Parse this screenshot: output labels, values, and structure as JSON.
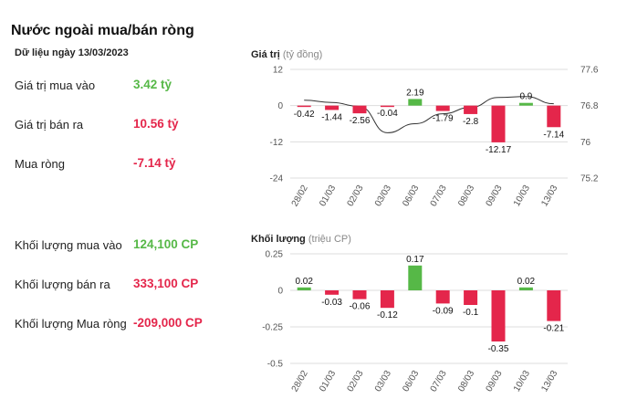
{
  "header": {
    "title": "Nước ngoài mua/bán ròng",
    "date": "Dữ liệu ngày 13/03/2023"
  },
  "stats": [
    {
      "label": "Giá trị mua vào",
      "value": "3.42 tỷ",
      "color": "#56b847"
    },
    {
      "label": "Giá trị bán ra",
      "value": "10.56 tỷ",
      "color": "#e4264b"
    },
    {
      "label": "Mua ròng",
      "value": "-7.14 tỷ",
      "color": "#e4264b"
    },
    {
      "label": "Khối lượng mua vào",
      "value": "124,100 CP",
      "color": "#56b847"
    },
    {
      "label": "Khối lượng bán ra",
      "value": "333,100 CP",
      "color": "#e4264b"
    },
    {
      "label": "Khối lượng Mua ròng",
      "value": "-209,000 CP",
      "color": "#e4264b"
    }
  ],
  "colors": {
    "positive": "#56b847",
    "negative": "#e4264b",
    "line": "#333333",
    "grid": "#dddddd"
  },
  "chart_data": [
    {
      "type": "bar",
      "title": "Giá trị",
      "unit": "(tỷ đồng)",
      "categories": [
        "28/02",
        "01/03",
        "02/03",
        "03/03",
        "06/03",
        "07/03",
        "08/03",
        "09/03",
        "10/03",
        "13/03"
      ],
      "values": [
        -0.42,
        -1.44,
        -2.56,
        -0.04,
        2.19,
        -1.79,
        -2.8,
        -12.17,
        0.9,
        -7.14
      ],
      "labels": [
        "-0.42",
        "-1.44",
        "-2.56",
        "-0.04",
        "2.19",
        "-1.79",
        "-2.8",
        "-12.17",
        "0.9",
        "-7.14"
      ],
      "yticks": [
        12,
        0,
        -12,
        -24
      ],
      "ylim": [
        -24,
        12
      ],
      "secondary_axis": {
        "ticks": [
          "77.6",
          "76.8",
          "76",
          "75.2"
        ],
        "ylim": [
          75.2,
          77.6
        ],
        "line_values": [
          76.92,
          76.87,
          76.78,
          76.2,
          76.4,
          76.62,
          76.76,
          76.98,
          77.0,
          76.84
        ]
      },
      "grid": true
    },
    {
      "type": "bar",
      "title": "Khối lượng",
      "unit": "(triệu CP)",
      "categories": [
        "28/02",
        "01/03",
        "02/03",
        "03/03",
        "06/03",
        "07/03",
        "08/03",
        "09/03",
        "10/03",
        "13/03"
      ],
      "values": [
        0.02,
        -0.03,
        -0.06,
        -0.12,
        0.17,
        -0.09,
        -0.1,
        -0.35,
        0.02,
        -0.21
      ],
      "labels": [
        "0.02",
        "-0.03",
        "-0.06",
        "-0.12",
        "0.17",
        "-0.09",
        "-0.1",
        "-0.35",
        "0.02",
        "-0.21"
      ],
      "yticks": [
        "0.25",
        "0",
        "-0.25",
        "-0.5"
      ],
      "ylim": [
        -0.5,
        0.25
      ],
      "grid": true
    }
  ]
}
